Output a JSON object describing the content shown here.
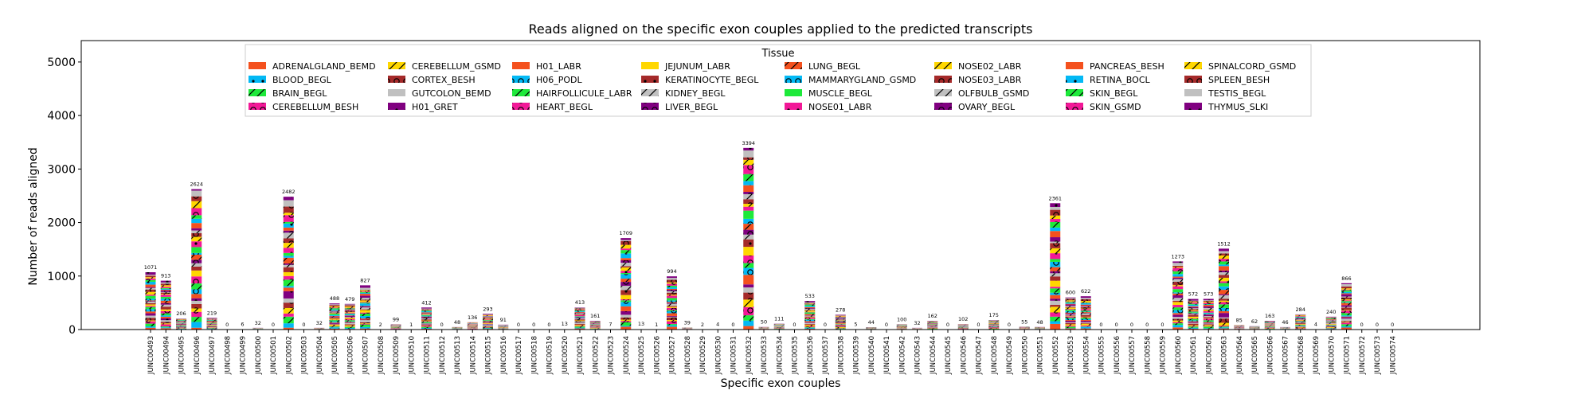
{
  "chart_data": {
    "type": "bar",
    "stacked": true,
    "title": "Reads aligned on the specific exon couples applied to the predicted transcripts",
    "xlabel": "Specific exon couples",
    "ylabel": "Number of reads aligned",
    "ylim": [
      0,
      5400
    ],
    "yticks": [
      0,
      1000,
      2000,
      3000,
      4000,
      5000
    ],
    "legend_title": "Tissue",
    "legend_position": "top-center",
    "grid": false,
    "categories": [
      "JUNC00493",
      "JUNC00494",
      "JUNC00495",
      "JUNC00496",
      "JUNC00497",
      "JUNC00498",
      "JUNC00499",
      "JUNC00500",
      "JUNC00501",
      "JUNC00502",
      "JUNC00503",
      "JUNC00504",
      "JUNC00505",
      "JUNC00506",
      "JUNC00507",
      "JUNC00508",
      "JUNC00509",
      "JUNC00510",
      "JUNC00511",
      "JUNC00512",
      "JUNC00513",
      "JUNC00514",
      "JUNC00515",
      "JUNC00516",
      "JUNC00517",
      "JUNC00518",
      "JUNC00519",
      "JUNC00520",
      "JUNC00521",
      "JUNC00522",
      "JUNC00523",
      "JUNC00524",
      "JUNC00525",
      "JUNC00526",
      "JUNC00527",
      "JUNC00528",
      "JUNC00529",
      "JUNC00530",
      "JUNC00531",
      "JUNC00532",
      "JUNC00533",
      "JUNC00534",
      "JUNC00535",
      "JUNC00536",
      "JUNC00537",
      "JUNC00538",
      "JUNC00539",
      "JUNC00540",
      "JUNC00541",
      "JUNC00542",
      "JUNC00543",
      "JUNC00544",
      "JUNC00545",
      "JUNC00546",
      "JUNC00547",
      "JUNC00548",
      "JUNC00549",
      "JUNC00550",
      "JUNC00551",
      "JUNC00552",
      "JUNC00553",
      "JUNC00554",
      "JUNC00555",
      "JUNC00556",
      "JUNC00557",
      "JUNC00558",
      "JUNC00559",
      "JUNC00560",
      "JUNC00561",
      "JUNC00562",
      "JUNC00563",
      "JUNC00564",
      "JUNC00565",
      "JUNC00566",
      "JUNC00567",
      "JUNC00568",
      "JUNC00569",
      "JUNC00570",
      "JUNC00571",
      "JUNC00572",
      "JUNC00573",
      "JUNC00574"
    ],
    "totals": [
      1071,
      913,
      206,
      2624,
      219,
      0,
      6,
      32,
      0,
      2482,
      0,
      32,
      488,
      479,
      827,
      2,
      99,
      1,
      412,
      0,
      48,
      136,
      293,
      91,
      0,
      0,
      0,
      13,
      413,
      161,
      7,
      1709,
      13,
      1,
      994,
      39,
      2,
      4,
      0,
      3394,
      50,
      111,
      0,
      533,
      0,
      278,
      5,
      44,
      0,
      100,
      32,
      162,
      0,
      102,
      0,
      175,
      0,
      55,
      48,
      2361,
      600,
      622,
      0,
      0,
      0,
      0,
      0,
      1273,
      572,
      573,
      1512,
      85,
      62,
      163,
      46,
      284,
      4,
      240,
      866,
      0,
      0,
      0
    ],
    "series": [
      {
        "name": "ADRENALGLAND_BEMD",
        "color": "#f4511e",
        "pattern": "solid"
      },
      {
        "name": "BLOOD_BEGL",
        "color": "#03b9f5",
        "pattern": "dot"
      },
      {
        "name": "BRAIN_BEGL",
        "color": "#1de93a",
        "pattern": "slash"
      },
      {
        "name": "CEREBELLUM_BESH",
        "color": "#f21897",
        "pattern": "circle"
      },
      {
        "name": "CEREBELLUM_GSMD",
        "color": "#ffd700",
        "pattern": "slash"
      },
      {
        "name": "CORTEX_BESH",
        "color": "#a52a2a",
        "pattern": "circle"
      },
      {
        "name": "GUTCOLON_BEMD",
        "color": "#c0c0c0",
        "pattern": "solid"
      },
      {
        "name": "H01_GRET",
        "color": "#800080",
        "pattern": "dot"
      },
      {
        "name": "H01_LABR",
        "color": "#f4511e",
        "pattern": "solid"
      },
      {
        "name": "H06_PODL",
        "color": "#03b9f5",
        "pattern": "circle"
      },
      {
        "name": "HAIRFOLLICULE_LABR",
        "color": "#1de93a",
        "pattern": "slash"
      },
      {
        "name": "HEART_BEGL",
        "color": "#f21897",
        "pattern": "circle"
      },
      {
        "name": "JEJUNUM_LABR",
        "color": "#ffd700",
        "pattern": "solid"
      },
      {
        "name": "KERATINOCYTE_BEGL",
        "color": "#a52a2a",
        "pattern": "dot"
      },
      {
        "name": "KIDNEY_BEGL",
        "color": "#c0c0c0",
        "pattern": "slash"
      },
      {
        "name": "LIVER_BEGL",
        "color": "#800080",
        "pattern": "circle"
      },
      {
        "name": "LUNG_BEGL",
        "color": "#f4511e",
        "pattern": "slash"
      },
      {
        "name": "MAMMARYGLAND_GSMD",
        "color": "#03b9f5",
        "pattern": "circle"
      },
      {
        "name": "MUSCLE_BEGL",
        "color": "#1de93a",
        "pattern": "solid"
      },
      {
        "name": "NOSE01_LABR",
        "color": "#f21897",
        "pattern": "dot"
      },
      {
        "name": "NOSE02_LABR",
        "color": "#ffd700",
        "pattern": "slash"
      },
      {
        "name": "NOSE03_LABR",
        "color": "#a52a2a",
        "pattern": "circle"
      },
      {
        "name": "OLFBULB_GSMD",
        "color": "#c0c0c0",
        "pattern": "slash"
      },
      {
        "name": "OVARY_BEGL",
        "color": "#800080",
        "pattern": "circle"
      },
      {
        "name": "PANCREAS_BESH",
        "color": "#f4511e",
        "pattern": "solid"
      },
      {
        "name": "RETINA_BOCL",
        "color": "#03b9f5",
        "pattern": "dot"
      },
      {
        "name": "SKIN_BEGL",
        "color": "#1de93a",
        "pattern": "slash"
      },
      {
        "name": "SKIN_GSMD",
        "color": "#f21897",
        "pattern": "circle"
      },
      {
        "name": "SPINALCORD_GSMD",
        "color": "#ffd700",
        "pattern": "slash"
      },
      {
        "name": "SPLEEN_BESH",
        "color": "#a52a2a",
        "pattern": "circle"
      },
      {
        "name": "TESTIS_BEGL",
        "color": "#c0c0c0",
        "pattern": "solid"
      },
      {
        "name": "THYMUS_SLKI",
        "color": "#800080",
        "pattern": "dot"
      }
    ]
  }
}
